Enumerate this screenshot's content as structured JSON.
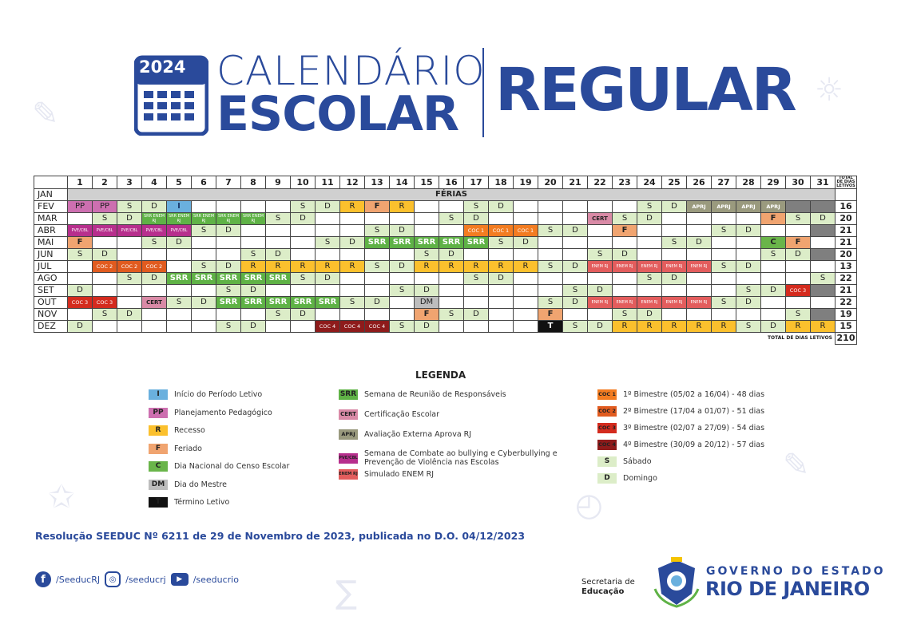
{
  "header": {
    "year": "2024",
    "title_line1": "CALENDÁRIO",
    "title_line2": "ESCOLAR",
    "title_right": "REGULAR"
  },
  "table": {
    "days": [
      "1",
      "2",
      "3",
      "4",
      "5",
      "6",
      "7",
      "8",
      "9",
      "10",
      "11",
      "12",
      "13",
      "14",
      "15",
      "16",
      "17",
      "18",
      "19",
      "20",
      "21",
      "22",
      "23",
      "24",
      "25",
      "26",
      "27",
      "28",
      "29",
      "30",
      "31"
    ],
    "total_header": "TOTAL DE DIAS LETIVOS",
    "total_label": "TOTAL DE DIAS LETIVOS",
    "total_value": "210",
    "rows": [
      {
        "month": "JAN",
        "cells": [],
        "total": ""
      },
      {
        "month": "FEV",
        "cells": [
          "PP",
          "PP",
          "S",
          "D",
          "I",
          "",
          "",
          "",
          "",
          "S",
          "D",
          "R",
          "F",
          "R",
          "",
          "",
          "S",
          "D",
          "",
          "",
          "",
          "",
          "",
          "S",
          "D",
          "APRJ",
          "APRJ",
          "APRJ",
          "APRJ",
          "GRAY",
          "GRAY"
        ],
        "total": "16"
      },
      {
        "month": "MAR",
        "cells": [
          "",
          "S",
          "D",
          "SRRENEM",
          "SRRENEM",
          "SRRENEM",
          "SRRENEM",
          "SRRENEM",
          "S",
          "D",
          "",
          "",
          "",
          "",
          "",
          "S",
          "D",
          "",
          "",
          "",
          "",
          "CERT",
          "S",
          "D",
          "",
          "",
          "",
          "",
          "F",
          "S",
          "D"
        ],
        "total": "20"
      },
      {
        "month": "ABR",
        "cells": [
          "PVE",
          "PVE",
          "PVE",
          "PVE",
          "PVE",
          "S",
          "D",
          "",
          "",
          "",
          "",
          "",
          "S",
          "D",
          "",
          "",
          "COC1",
          "COC1",
          "COC1",
          "S",
          "D",
          "",
          "F",
          "",
          "",
          "",
          "S",
          "D",
          "",
          "",
          "GRAY"
        ],
        "total": "21"
      },
      {
        "month": "MAI",
        "cells": [
          "F",
          "",
          "",
          "S",
          "D",
          "",
          "",
          "",
          "",
          "",
          "S",
          "D",
          "SRR",
          "SRR",
          "SRR",
          "SRR",
          "SRR",
          "S",
          "D",
          "",
          "",
          "",
          "",
          "",
          "S",
          "D",
          "",
          "",
          "C",
          "F",
          ""
        ],
        "total": "21"
      },
      {
        "month": "JUN",
        "cells": [
          "S",
          "D",
          "",
          "",
          "",
          "",
          "",
          "S",
          "D",
          "",
          "",
          "",
          "",
          "",
          "S",
          "D",
          "",
          "",
          "",
          "",
          "",
          "S",
          "D",
          "",
          "",
          "",
          "",
          "",
          "S",
          "D",
          "GRAY"
        ],
        "total": "20"
      },
      {
        "month": "JUL",
        "cells": [
          "",
          "COC2",
          "COC2",
          "COC2",
          "",
          "S",
          "D",
          "R",
          "R",
          "R",
          "R",
          "R",
          "S",
          "D",
          "R",
          "R",
          "R",
          "R",
          "R",
          "S",
          "D",
          "ENEM",
          "ENEM",
          "ENEM",
          "ENEM",
          "ENEM",
          "S",
          "D",
          "",
          "",
          ""
        ],
        "total": "13"
      },
      {
        "month": "AGO",
        "cells": [
          "",
          "",
          "S",
          "D",
          "SRR",
          "SRR",
          "SRR",
          "SRR",
          "SRR",
          "S",
          "D",
          "",
          "",
          "",
          "",
          "",
          "S",
          "D",
          "",
          "",
          "",
          "",
          "",
          "S",
          "D",
          "",
          "",
          "",
          "",
          "",
          "S"
        ],
        "total": "22"
      },
      {
        "month": "SET",
        "cells": [
          "D",
          "",
          "",
          "",
          "",
          "",
          "S",
          "D",
          "",
          "",
          "",
          "",
          "",
          "S",
          "D",
          "",
          "",
          "",
          "",
          "",
          "S",
          "D",
          "",
          "",
          "",
          "",
          "",
          "S",
          "D",
          "COC3",
          "GRAY"
        ],
        "total": "21"
      },
      {
        "month": "OUT",
        "cells": [
          "COC3",
          "COC3",
          "",
          "CERT",
          "S",
          "D",
          "SRR",
          "SRR",
          "SRR",
          "SRR",
          "SRR",
          "S",
          "D",
          "",
          "DM",
          "",
          "",
          "",
          "",
          "S",
          "D",
          "ENEM",
          "ENEM",
          "ENEM",
          "ENEM",
          "ENEM",
          "S",
          "D",
          "",
          "",
          ""
        ],
        "total": "22"
      },
      {
        "month": "NOV",
        "cells": [
          "",
          "S",
          "D",
          "",
          "",
          "",
          "",
          "",
          "S",
          "D",
          "",
          "",
          "",
          "",
          "F",
          "S",
          "D",
          "",
          "",
          "F",
          "",
          "",
          "S",
          "D",
          "",
          "",
          "",
          "",
          "",
          "S",
          "GRAY"
        ],
        "total": "19"
      },
      {
        "month": "DEZ",
        "cells": [
          "D",
          "",
          "",
          "",
          "",
          "",
          "S",
          "D",
          "",
          "",
          "COC4",
          "COC4",
          "COC4",
          "S",
          "D",
          "",
          "",
          "",
          "",
          "T",
          "S",
          "D",
          "R",
          "R",
          "R",
          "R",
          "R",
          "S",
          "D",
          "R",
          "R"
        ],
        "total": "15"
      }
    ],
    "ferias_label": "FÉRIAS",
    "labels": {
      "S": "S",
      "D": "D",
      "SRR": "SRR",
      "I": "I",
      "PP": "PP",
      "R": "R",
      "F": "F",
      "C": "C",
      "DM": "DM",
      "T": "T",
      "CERT": "CERT",
      "APRJ": "APRJ",
      "PVE": "PVE/CBL",
      "ENEM": "ENEM RJ",
      "SRRENEM": "SRR ENEM RJ",
      "COC1": "COC 1",
      "COC2": "COC 2",
      "COC3": "COC 3",
      "COC4": "COC 4",
      "GRAY": ""
    }
  },
  "legend": {
    "title": "LEGENDA",
    "col1": [
      {
        "code": "I",
        "cls": "c-I",
        "text": "Início do Período Letivo"
      },
      {
        "code": "PP",
        "cls": "c-PP",
        "text": "Planejamento Pedagógico"
      },
      {
        "code": "R",
        "cls": "c-R",
        "text": "Recesso"
      },
      {
        "code": "F",
        "cls": "c-F",
        "text": "Feriado"
      },
      {
        "code": "C",
        "cls": "c-C",
        "text": "Dia Nacional do Censo Escolar"
      },
      {
        "code": "DM",
        "cls": "c-DM",
        "text": "Dia do Mestre"
      },
      {
        "code": "T",
        "cls": "c-T",
        "text": "Término Letivo"
      }
    ],
    "col2": [
      {
        "code": "SRR",
        "cls": "c-SRR",
        "text": "Semana de Reunião de Responsáveis"
      },
      {
        "code": "CERT",
        "cls": "c-CERT",
        "text": "Certificação Escolar"
      },
      {
        "code": "APRJ",
        "cls": "c-APRJ",
        "text": "Avaliação Externa Aprova RJ"
      },
      {
        "code": "PVE/CBL",
        "cls": "c-PVE",
        "text": "Semana de Combate ao bullying e Cyberbullying e Prevenção de Violência nas Escolas"
      },
      {
        "code": "ENEM RJ",
        "cls": "c-ENEM",
        "text": "Simulado ENEM RJ"
      }
    ],
    "col3": [
      {
        "code": "COC 1",
        "cls": "c-COC1",
        "text": "1º Bimestre (05/02 a 16/04) - 48 dias"
      },
      {
        "code": "COC 2",
        "cls": "c-COC2",
        "text": "2º Bimestre (17/04 a 01/07) - 51 dias"
      },
      {
        "code": "COC 3",
        "cls": "c-COC3",
        "text": "3º Bimestre (02/07 a 27/09) - 54 dias"
      },
      {
        "code": "COC 4",
        "cls": "c-COC4",
        "text": "4º Bimestre (30/09 a 20/12) - 57 dias"
      },
      {
        "code": "S",
        "cls": "c-S",
        "text": "Sábado"
      },
      {
        "code": "D",
        "cls": "c-D",
        "text": "Domingo"
      }
    ]
  },
  "footer": {
    "resolution": "Resolução SEEDUC Nº 6211 de 29 de Novembro de 2023, publicada no D.O. 04/12/2023",
    "facebook": "/SeeducRJ",
    "instagram": "/seeducrj",
    "youtube": "/seeducrio",
    "secretaria_line1": "Secretaria de",
    "secretaria_line2": "Educação",
    "gov_line1": "GOVERNO DO ESTADO",
    "gov_line2": "RIO DE JANEIRO"
  },
  "colors": {
    "brand": "#2a4a9b"
  }
}
